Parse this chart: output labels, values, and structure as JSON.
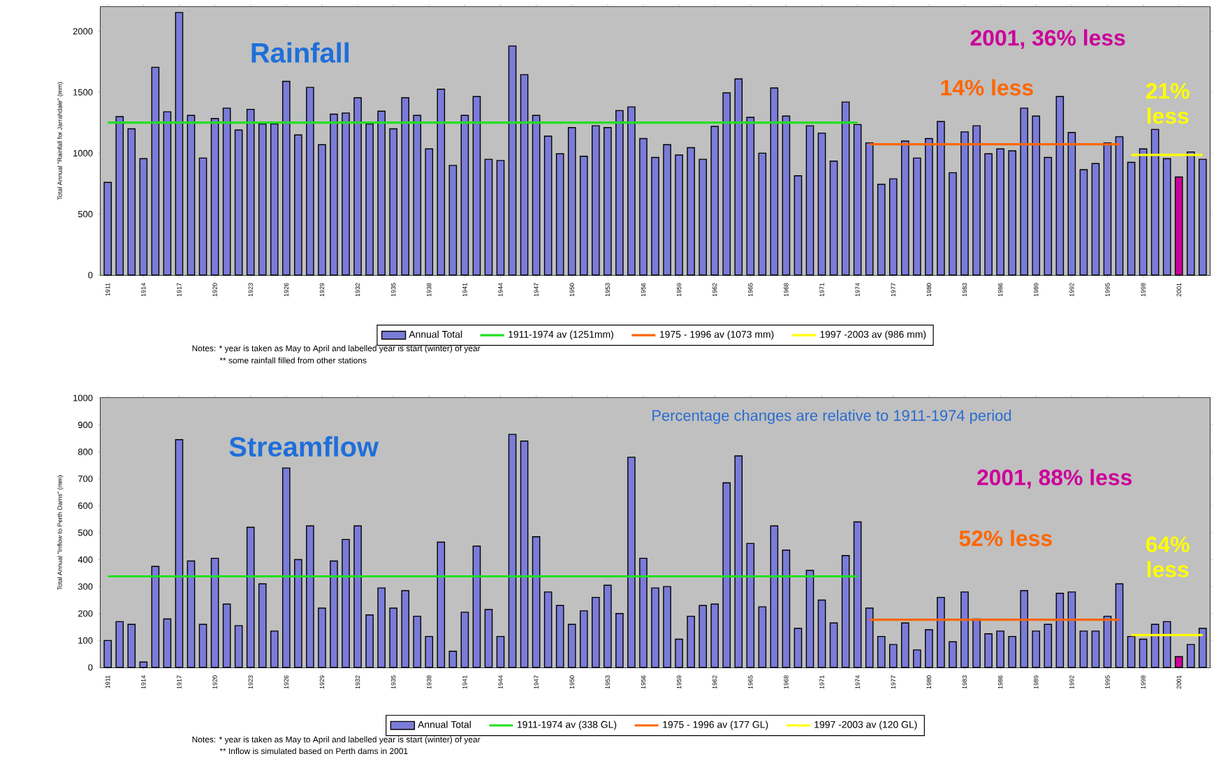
{
  "chart_data": [
    {
      "type": "bar",
      "title": "Rainfall",
      "ylabel": "Total Annual \"Rainfall for Jarrahdale\" (mm)",
      "categories": [
        "1911",
        null,
        null,
        "1914",
        null,
        null,
        "1917",
        null,
        null,
        "1920",
        null,
        null,
        "1923",
        null,
        null,
        "1926",
        null,
        null,
        "1929",
        null,
        null,
        "1932",
        null,
        null,
        "1935",
        null,
        null,
        "1938",
        null,
        null,
        "1941",
        null,
        null,
        "1944",
        null,
        null,
        "1947",
        null,
        null,
        "1950",
        null,
        null,
        "1953",
        null,
        null,
        "1956",
        null,
        null,
        "1959",
        null,
        null,
        "1962",
        null,
        null,
        "1965",
        null,
        null,
        "1968",
        null,
        null,
        "1971",
        null,
        null,
        "1974",
        null,
        null,
        "1977",
        null,
        null,
        "1980",
        null,
        null,
        "1983",
        null,
        null,
        "1986",
        null,
        null,
        "1989",
        null,
        null,
        "1992",
        null,
        null,
        "1995",
        null,
        null,
        "1998",
        null,
        null,
        "2001",
        null,
        null
      ],
      "ylim": [
        0,
        2200
      ],
      "yticks": [
        0,
        500,
        1000,
        1500,
        2000
      ],
      "legend": "bottom",
      "series": [
        {
          "name": "Annual Total",
          "color": "#7b7bd9",
          "colors": [
            "#7b7bd9",
            "#7b7bd9",
            "#7b7bd9",
            "#7b7bd9",
            "#7b7bd9",
            "#7b7bd9",
            "#7b7bd9",
            "#7b7bd9",
            "#7b7bd9",
            "#7b7bd9",
            "#7b7bd9",
            "#7b7bd9",
            "#7b7bd9",
            "#7b7bd9",
            "#7b7bd9",
            "#7b7bd9",
            "#7b7bd9",
            "#7b7bd9",
            "#7b7bd9",
            "#7b7bd9",
            "#7b7bd9",
            "#7b7bd9",
            "#7b7bd9",
            "#7b7bd9",
            "#7b7bd9",
            "#7b7bd9",
            "#7b7bd9",
            "#7b7bd9",
            "#7b7bd9",
            "#7b7bd9",
            "#7b7bd9",
            "#7b7bd9",
            "#7b7bd9",
            "#7b7bd9",
            "#7b7bd9",
            "#7b7bd9",
            "#7b7bd9",
            "#7b7bd9",
            "#7b7bd9",
            "#7b7bd9",
            "#7b7bd9",
            "#7b7bd9",
            "#7b7bd9",
            "#7b7bd9",
            "#7b7bd9",
            "#7b7bd9",
            "#7b7bd9",
            "#7b7bd9",
            "#7b7bd9",
            "#7b7bd9",
            "#7b7bd9",
            "#7b7bd9",
            "#7b7bd9",
            "#7b7bd9",
            "#7b7bd9",
            "#7b7bd9",
            "#7b7bd9",
            "#7b7bd9",
            "#7b7bd9",
            "#7b7bd9",
            "#7b7bd9",
            "#7b7bd9",
            "#7b7bd9",
            "#7b7bd9",
            "#7b7bd9",
            "#7b7bd9",
            "#7b7bd9",
            "#7b7bd9",
            "#7b7bd9",
            "#7b7bd9",
            "#7b7bd9",
            "#7b7bd9",
            "#7b7bd9",
            "#7b7bd9",
            "#7b7bd9",
            "#7b7bd9",
            "#7b7bd9",
            "#7b7bd9",
            "#7b7bd9",
            "#7b7bd9",
            "#7b7bd9",
            "#7b7bd9",
            "#7b7bd9",
            "#7b7bd9",
            "#7b7bd9",
            "#7b7bd9",
            "#7b7bd9",
            "#7b7bd9",
            "#7b7bd9",
            "#7b7bd9",
            "#cc0099",
            "#7b7bd9",
            "#7b7bd9"
          ],
          "values": [
            760,
            1300,
            1200,
            955,
            1705,
            1340,
            2155,
            1310,
            960,
            1285,
            1370,
            1190,
            1360,
            1240,
            1240,
            1590,
            1150,
            1540,
            1070,
            1320,
            1330,
            1455,
            1240,
            1345,
            1200,
            1455,
            1310,
            1035,
            1525,
            900,
            1310,
            1465,
            950,
            940,
            1880,
            1645,
            1310,
            1140,
            995,
            1210,
            975,
            1225,
            1210,
            1350,
            1380,
            1120,
            965,
            1070,
            985,
            1045,
            950,
            1220,
            1495,
            1610,
            1295,
            1000,
            1535,
            1305,
            815,
            1225,
            1165,
            935,
            1420,
            1235,
            1085,
            745,
            790,
            1100,
            960,
            1120,
            1260,
            840,
            1175,
            1225,
            995,
            1035,
            1020,
            1370,
            1305,
            965,
            1465,
            1170,
            865,
            915,
            1085,
            1135,
            925,
            1035,
            1195,
            955,
            805,
            1010,
            950
          ]
        },
        {
          "name": "1911-1974 av (1251mm)",
          "type": "line",
          "color": "#22e022",
          "values": [
            1251,
            1251,
            1251,
            1251,
            1251,
            1251,
            1251,
            1251,
            1251,
            1251,
            1251,
            1251,
            1251,
            1251,
            1251,
            1251,
            1251,
            1251,
            1251,
            1251,
            1251,
            1251,
            1251,
            1251,
            1251,
            1251,
            1251,
            1251,
            1251,
            1251,
            1251,
            1251,
            1251,
            1251,
            1251,
            1251,
            1251,
            1251,
            1251,
            1251,
            1251,
            1251,
            1251,
            1251,
            1251,
            1251,
            1251,
            1251,
            1251,
            1251,
            1251,
            1251,
            1251,
            1251,
            1251,
            1251,
            1251,
            1251,
            1251,
            1251,
            1251,
            1251,
            1251,
            1251,
            null,
            null,
            null,
            null,
            null,
            null,
            null,
            null,
            null,
            null,
            null,
            null,
            null,
            null,
            null,
            null,
            null,
            null,
            null,
            null,
            null,
            null,
            null,
            null,
            null,
            null,
            null,
            null,
            null
          ]
        },
        {
          "name": "1975 - 1996 av (1073 mm)",
          "type": "line",
          "color": "#ff6600",
          "values": [
            null,
            null,
            null,
            null,
            null,
            null,
            null,
            null,
            null,
            null,
            null,
            null,
            null,
            null,
            null,
            null,
            null,
            null,
            null,
            null,
            null,
            null,
            null,
            null,
            null,
            null,
            null,
            null,
            null,
            null,
            null,
            null,
            null,
            null,
            null,
            null,
            null,
            null,
            null,
            null,
            null,
            null,
            null,
            null,
            null,
            null,
            null,
            null,
            null,
            null,
            null,
            null,
            null,
            null,
            null,
            null,
            null,
            null,
            null,
            null,
            null,
            null,
            null,
            null,
            1073,
            1073,
            1073,
            1073,
            1073,
            1073,
            1073,
            1073,
            1073,
            1073,
            1073,
            1073,
            1073,
            1073,
            1073,
            1073,
            1073,
            1073,
            1073,
            1073,
            1073,
            1073,
            null,
            null,
            null,
            null,
            null,
            null,
            null
          ]
        },
        {
          "name": "1997 -2003 av (986 mm)",
          "type": "line",
          "color": "#ffff00",
          "values": [
            null,
            null,
            null,
            null,
            null,
            null,
            null,
            null,
            null,
            null,
            null,
            null,
            null,
            null,
            null,
            null,
            null,
            null,
            null,
            null,
            null,
            null,
            null,
            null,
            null,
            null,
            null,
            null,
            null,
            null,
            null,
            null,
            null,
            null,
            null,
            null,
            null,
            null,
            null,
            null,
            null,
            null,
            null,
            null,
            null,
            null,
            null,
            null,
            null,
            null,
            null,
            null,
            null,
            null,
            null,
            null,
            null,
            null,
            null,
            null,
            null,
            null,
            null,
            null,
            null,
            null,
            null,
            null,
            null,
            null,
            null,
            null,
            null,
            null,
            null,
            null,
            null,
            null,
            null,
            null,
            null,
            null,
            null,
            null,
            null,
            null,
            986,
            986,
            986,
            986,
            986,
            986,
            986
          ]
        }
      ],
      "annotations": [
        "2001, 36% less",
        "14% less",
        "21% less",
        "Notes:  *   year is taken as May to April and labelled year is start (winter) of year",
        "** some rainfall filled from other stations"
      ]
    },
    {
      "type": "bar",
      "title": "Streamflow",
      "ylabel": "Total Annual \"Inflow to Perth Dams\" (mm)",
      "categories": [
        "1911",
        null,
        null,
        "1914",
        null,
        null,
        "1917",
        null,
        null,
        "1920",
        null,
        null,
        "1923",
        null,
        null,
        "1926",
        null,
        null,
        "1929",
        null,
        null,
        "1932",
        null,
        null,
        "1935",
        null,
        null,
        "1938",
        null,
        null,
        "1941",
        null,
        null,
        "1944",
        null,
        null,
        "1947",
        null,
        null,
        "1950",
        null,
        null,
        "1953",
        null,
        null,
        "1956",
        null,
        null,
        "1959",
        null,
        null,
        "1962",
        null,
        null,
        "1965",
        null,
        null,
        "1968",
        null,
        null,
        "1971",
        null,
        null,
        "1974",
        null,
        null,
        "1977",
        null,
        null,
        "1980",
        null,
        null,
        "1983",
        null,
        null,
        "1986",
        null,
        null,
        "1989",
        null,
        null,
        "1992",
        null,
        null,
        "1995",
        null,
        null,
        "1998",
        null,
        null,
        "2001",
        null,
        null
      ],
      "ylim": [
        0,
        1000
      ],
      "yticks": [
        0,
        100,
        200,
        300,
        400,
        500,
        600,
        700,
        800,
        900,
        1000
      ],
      "legend": "bottom",
      "series": [
        {
          "name": "Annual Total",
          "color": "#7b7bd9",
          "colors": [
            "#7b7bd9",
            "#7b7bd9",
            "#7b7bd9",
            "#7b7bd9",
            "#7b7bd9",
            "#7b7bd9",
            "#7b7bd9",
            "#7b7bd9",
            "#7b7bd9",
            "#7b7bd9",
            "#7b7bd9",
            "#7b7bd9",
            "#7b7bd9",
            "#7b7bd9",
            "#7b7bd9",
            "#7b7bd9",
            "#7b7bd9",
            "#7b7bd9",
            "#7b7bd9",
            "#7b7bd9",
            "#7b7bd9",
            "#7b7bd9",
            "#7b7bd9",
            "#7b7bd9",
            "#7b7bd9",
            "#7b7bd9",
            "#7b7bd9",
            "#7b7bd9",
            "#7b7bd9",
            "#7b7bd9",
            "#7b7bd9",
            "#7b7bd9",
            "#7b7bd9",
            "#7b7bd9",
            "#7b7bd9",
            "#7b7bd9",
            "#7b7bd9",
            "#7b7bd9",
            "#7b7bd9",
            "#7b7bd9",
            "#7b7bd9",
            "#7b7bd9",
            "#7b7bd9",
            "#7b7bd9",
            "#7b7bd9",
            "#7b7bd9",
            "#7b7bd9",
            "#7b7bd9",
            "#7b7bd9",
            "#7b7bd9",
            "#7b7bd9",
            "#7b7bd9",
            "#7b7bd9",
            "#7b7bd9",
            "#7b7bd9",
            "#7b7bd9",
            "#7b7bd9",
            "#7b7bd9",
            "#7b7bd9",
            "#7b7bd9",
            "#7b7bd9",
            "#7b7bd9",
            "#7b7bd9",
            "#7b7bd9",
            "#7b7bd9",
            "#7b7bd9",
            "#7b7bd9",
            "#7b7bd9",
            "#7b7bd9",
            "#7b7bd9",
            "#7b7bd9",
            "#7b7bd9",
            "#7b7bd9",
            "#7b7bd9",
            "#7b7bd9",
            "#7b7bd9",
            "#7b7bd9",
            "#7b7bd9",
            "#7b7bd9",
            "#7b7bd9",
            "#7b7bd9",
            "#7b7bd9",
            "#7b7bd9",
            "#7b7bd9",
            "#7b7bd9",
            "#7b7bd9",
            "#7b7bd9",
            "#7b7bd9",
            "#7b7bd9",
            "#7b7bd9",
            "#cc0099",
            "#7b7bd9",
            "#7b7bd9"
          ],
          "values": [
            100,
            170,
            160,
            20,
            375,
            180,
            845,
            395,
            160,
            405,
            235,
            155,
            520,
            310,
            135,
            740,
            400,
            525,
            220,
            395,
            475,
            525,
            195,
            295,
            220,
            285,
            190,
            115,
            465,
            60,
            205,
            450,
            215,
            115,
            865,
            840,
            485,
            280,
            230,
            160,
            210,
            260,
            305,
            200,
            780,
            405,
            295,
            300,
            105,
            190,
            230,
            235,
            685,
            785,
            460,
            225,
            525,
            435,
            145,
            360,
            250,
            165,
            415,
            540,
            220,
            115,
            85,
            165,
            65,
            140,
            260,
            95,
            280,
            180,
            125,
            135,
            115,
            285,
            135,
            160,
            275,
            280,
            135,
            135,
            190,
            310,
            115,
            105,
            160,
            170,
            40,
            85,
            145
          ]
        },
        {
          "name": "1911-1974 av (338 GL)",
          "type": "line",
          "color": "#22e022",
          "values": [
            338,
            338,
            338,
            338,
            338,
            338,
            338,
            338,
            338,
            338,
            338,
            338,
            338,
            338,
            338,
            338,
            338,
            338,
            338,
            338,
            338,
            338,
            338,
            338,
            338,
            338,
            338,
            338,
            338,
            338,
            338,
            338,
            338,
            338,
            338,
            338,
            338,
            338,
            338,
            338,
            338,
            338,
            338,
            338,
            338,
            338,
            338,
            338,
            338,
            338,
            338,
            338,
            338,
            338,
            338,
            338,
            338,
            338,
            338,
            338,
            338,
            338,
            338,
            338,
            null,
            null,
            null,
            null,
            null,
            null,
            null,
            null,
            null,
            null,
            null,
            null,
            null,
            null,
            null,
            null,
            null,
            null,
            null,
            null,
            null,
            null,
            null,
            null,
            null,
            null,
            null,
            null,
            null
          ]
        },
        {
          "name": "1975 - 1996 av (177 GL)",
          "type": "line",
          "color": "#ff6600",
          "values": [
            null,
            null,
            null,
            null,
            null,
            null,
            null,
            null,
            null,
            null,
            null,
            null,
            null,
            null,
            null,
            null,
            null,
            null,
            null,
            null,
            null,
            null,
            null,
            null,
            null,
            null,
            null,
            null,
            null,
            null,
            null,
            null,
            null,
            null,
            null,
            null,
            null,
            null,
            null,
            null,
            null,
            null,
            null,
            null,
            null,
            null,
            null,
            null,
            null,
            null,
            null,
            null,
            null,
            null,
            null,
            null,
            null,
            null,
            null,
            null,
            null,
            null,
            null,
            null,
            177,
            177,
            177,
            177,
            177,
            177,
            177,
            177,
            177,
            177,
            177,
            177,
            177,
            177,
            177,
            177,
            177,
            177,
            177,
            177,
            177,
            177,
            null,
            null,
            null,
            null,
            null,
            null,
            null
          ]
        },
        {
          "name": "1997 -2003 av (120 GL)",
          "type": "line",
          "color": "#ffff00",
          "values": [
            null,
            null,
            null,
            null,
            null,
            null,
            null,
            null,
            null,
            null,
            null,
            null,
            null,
            null,
            null,
            null,
            null,
            null,
            null,
            null,
            null,
            null,
            null,
            null,
            null,
            null,
            null,
            null,
            null,
            null,
            null,
            null,
            null,
            null,
            null,
            null,
            null,
            null,
            null,
            null,
            null,
            null,
            null,
            null,
            null,
            null,
            null,
            null,
            null,
            null,
            null,
            null,
            null,
            null,
            null,
            null,
            null,
            null,
            null,
            null,
            null,
            null,
            null,
            null,
            null,
            null,
            null,
            null,
            null,
            null,
            null,
            null,
            null,
            null,
            null,
            null,
            null,
            null,
            null,
            null,
            null,
            null,
            null,
            null,
            null,
            null,
            120,
            120,
            120,
            120,
            120,
            120,
            120
          ]
        }
      ],
      "annotations": [
        "Percentage changes are relative to 1911-1974 period",
        "2001, 88% less",
        "52% less",
        "64% less",
        "Notes:  *   year is taken as May to April and labelled year is start (winter) of year",
        "** Inflow is simulated based on Perth dams in 2001"
      ]
    }
  ]
}
